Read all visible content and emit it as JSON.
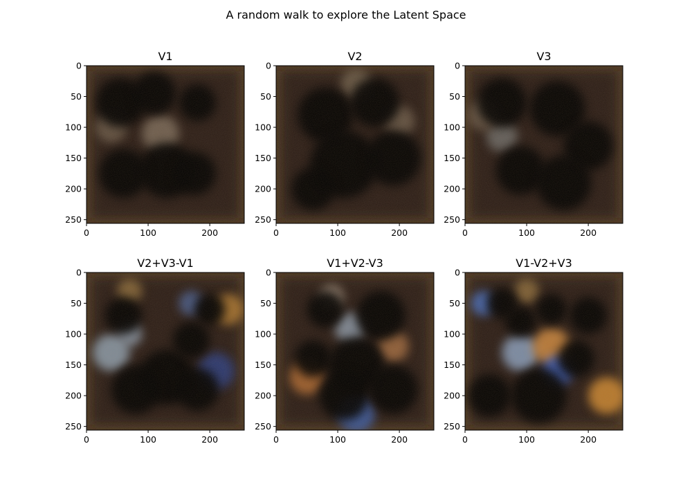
{
  "figure": {
    "title": "A random walk to explore the Latent Space"
  },
  "chart_data": {
    "type": "image",
    "xlim": [
      0,
      256
    ],
    "ylim": [
      256,
      0
    ],
    "xticks": [
      0,
      100,
      200
    ],
    "yticks": [
      0,
      50,
      100,
      150,
      200,
      250
    ],
    "panels": [
      {
        "title": "V1",
        "dark_blobs": [
          [
            55,
            60,
            40
          ],
          [
            110,
            45,
            35
          ],
          [
            180,
            60,
            30
          ],
          [
            130,
            170,
            45
          ],
          [
            60,
            175,
            40
          ],
          [
            175,
            175,
            35
          ]
        ],
        "light_blobs": [
          [
            120,
            110,
            30,
            "#7a6b5a"
          ],
          [
            40,
            100,
            25,
            "#6a5a48"
          ]
        ]
      },
      {
        "title": "V2",
        "dark_blobs": [
          [
            80,
            80,
            45
          ],
          [
            160,
            60,
            40
          ],
          [
            110,
            160,
            55
          ],
          [
            190,
            150,
            45
          ],
          [
            60,
            200,
            35
          ]
        ],
        "light_blobs": [
          [
            130,
            30,
            25,
            "#6e5e4c"
          ],
          [
            200,
            90,
            25,
            "#6a5a48"
          ]
        ]
      },
      {
        "title": "V3",
        "dark_blobs": [
          [
            60,
            60,
            40
          ],
          [
            150,
            70,
            45
          ],
          [
            200,
            130,
            40
          ],
          [
            90,
            170,
            40
          ],
          [
            160,
            190,
            45
          ]
        ],
        "light_blobs": [
          [
            60,
            115,
            25,
            "#6c6a68"
          ],
          [
            30,
            80,
            25,
            "#6a5a48"
          ]
        ]
      },
      {
        "title": "V2+V3-V1",
        "dark_blobs": [
          [
            60,
            70,
            30
          ],
          [
            130,
            170,
            45
          ],
          [
            200,
            60,
            25
          ],
          [
            170,
            110,
            30
          ],
          [
            80,
            190,
            40
          ],
          [
            180,
            190,
            35
          ]
        ],
        "light_blobs": [
          [
            40,
            130,
            30,
            "#8fa0b0"
          ],
          [
            70,
            100,
            20,
            "#8a98a8"
          ],
          [
            170,
            50,
            20,
            "#4a5f90"
          ],
          [
            70,
            30,
            20,
            "#8a6a3a"
          ],
          [
            230,
            60,
            25,
            "#b07a30"
          ],
          [
            210,
            160,
            30,
            "#2b3e80"
          ]
        ]
      },
      {
        "title": "V1+V2-V3",
        "dark_blobs": [
          [
            80,
            60,
            30
          ],
          [
            170,
            70,
            40
          ],
          [
            60,
            140,
            30
          ],
          [
            130,
            150,
            45
          ],
          [
            110,
            200,
            40
          ],
          [
            190,
            190,
            40
          ]
        ],
        "light_blobs": [
          [
            120,
            90,
            25,
            "#8a98a8"
          ],
          [
            50,
            170,
            28,
            "#b06a30"
          ],
          [
            130,
            230,
            30,
            "#3e5fa8"
          ],
          [
            90,
            40,
            20,
            "#9a8878"
          ],
          [
            190,
            120,
            25,
            "#a06a40"
          ]
        ]
      },
      {
        "title": "V1-V2+V3",
        "dark_blobs": [
          [
            90,
            80,
            25
          ],
          [
            140,
            60,
            25
          ],
          [
            200,
            70,
            30
          ],
          [
            60,
            50,
            25
          ],
          [
            180,
            140,
            30
          ],
          [
            120,
            200,
            45
          ],
          [
            40,
            200,
            35
          ]
        ],
        "light_blobs": [
          [
            30,
            50,
            20,
            "#4a70c0"
          ],
          [
            90,
            130,
            30,
            "#8aa0c0"
          ],
          [
            140,
            120,
            30,
            "#d08a40"
          ],
          [
            150,
            160,
            25,
            "#3a5fc0"
          ],
          [
            230,
            200,
            30,
            "#d08a30"
          ],
          [
            100,
            30,
            20,
            "#8a6a3a"
          ]
        ]
      }
    ]
  }
}
